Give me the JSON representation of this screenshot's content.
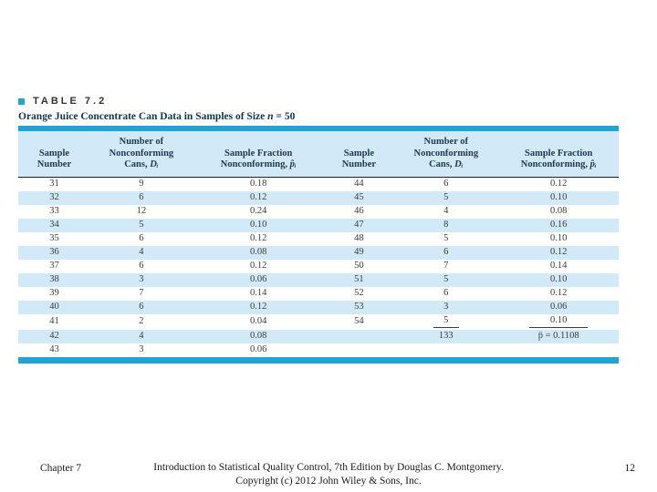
{
  "title": {
    "label": "TABLE 7.2"
  },
  "subtitle": {
    "prefix": "Orange Juice Concentrate Can Data in Samples of Size ",
    "var": "n",
    "suffix": " = 50"
  },
  "colors": {
    "bar_blue": "#22a3d6",
    "row_blue": "#d2e9f7",
    "header_text": "#1c3a52"
  },
  "table": {
    "columns": [
      {
        "line1": "Sample",
        "line2": "Number"
      },
      {
        "line1": "Number of",
        "line2": "Nonconforming",
        "line3": "Cans, ",
        "symbol": "Dᵢ"
      },
      {
        "line1": "Sample Fraction",
        "line2": "Nonconforming, ",
        "symbol": "p̂ᵢ"
      },
      {
        "line1": "Sample",
        "line2": "Number"
      },
      {
        "line1": "Number of",
        "line2": "Nonconforming",
        "line3": "Cans, ",
        "symbol": "Dᵢ"
      },
      {
        "line1": "Sample Fraction",
        "line2": "Nonconforming, ",
        "symbol": "p̂ᵢ"
      }
    ],
    "rows": [
      {
        "cells": [
          "31",
          "9",
          "0.18",
          "44",
          "6",
          "0.12"
        ]
      },
      {
        "cells": [
          "32",
          "6",
          "0.12",
          "45",
          "5",
          "0.10"
        ]
      },
      {
        "cells": [
          "33",
          "12",
          "0.24",
          "46",
          "4",
          "0.08"
        ]
      },
      {
        "cells": [
          "34",
          "5",
          "0.10",
          "47",
          "8",
          "0.16"
        ]
      },
      {
        "cells": [
          "35",
          "6",
          "0.12",
          "48",
          "5",
          "0.10"
        ]
      },
      {
        "cells": [
          "36",
          "4",
          "0.08",
          "49",
          "6",
          "0.12"
        ]
      },
      {
        "cells": [
          "37",
          "6",
          "0.12",
          "50",
          "7",
          "0.14"
        ]
      },
      {
        "cells": [
          "38",
          "3",
          "0.06",
          "51",
          "5",
          "0.10"
        ]
      },
      {
        "cells": [
          "39",
          "7",
          "0.14",
          "52",
          "6",
          "0.12"
        ]
      },
      {
        "cells": [
          "40",
          "6",
          "0.12",
          "53",
          "3",
          "0.06"
        ]
      },
      {
        "cells": [
          "41",
          "2",
          "0.04",
          "54",
          "5",
          "0.10"
        ],
        "underline_cells": [
          4,
          5
        ]
      },
      {
        "cells": [
          "42",
          "4",
          "0.08",
          "",
          "133",
          "p̄ = 0.1108"
        ]
      },
      {
        "cells": [
          "43",
          "3",
          "0.06",
          "",
          "",
          ""
        ]
      }
    ]
  },
  "footer": {
    "chapter": "Chapter 7",
    "center_line1": "Introduction to Statistical Quality Control, 7th Edition by Douglas C. Montgomery.",
    "center_line2": "Copyright (c) 2012  John Wiley & Sons, Inc.",
    "page": "12"
  }
}
